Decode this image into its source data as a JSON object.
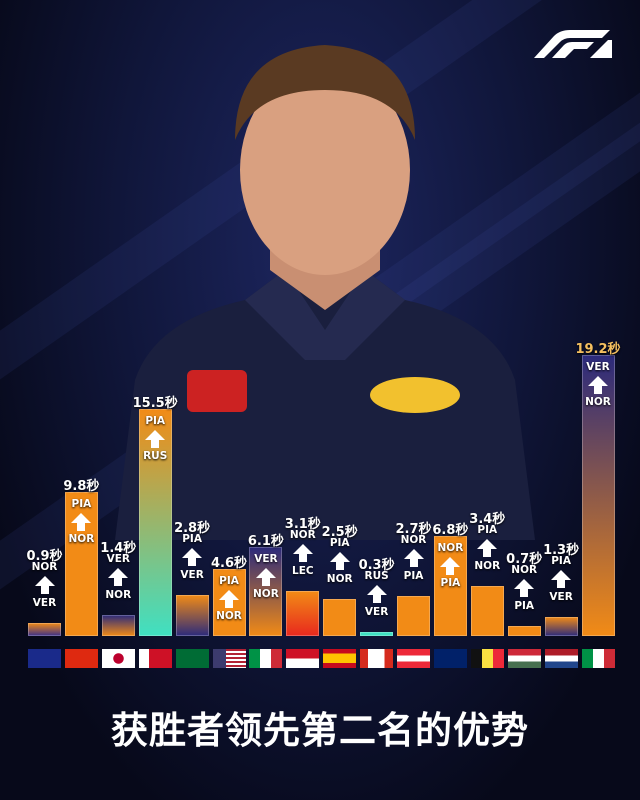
{
  "title": "获胜者领先第二名的优势",
  "logo": "F1",
  "unit": "秒",
  "colors": {
    "orange": "#f28b16",
    "navy": "#2b2a7c",
    "teal": "#3fe0c2",
    "red": "#e8281e",
    "background": "#0b0f24"
  },
  "chart_data": {
    "type": "bar",
    "title": "获胜者领先第二名的优势",
    "unit": "秒",
    "categories": [
      "australia",
      "china",
      "japan",
      "bahrain",
      "saudi-arabia",
      "usa",
      "italy",
      "monaco",
      "spain",
      "canada",
      "austria",
      "great-britain",
      "belgium",
      "hungary",
      "netherlands",
      "italy"
    ],
    "values": [
      0.9,
      9.8,
      1.4,
      15.5,
      2.8,
      4.6,
      6.1,
      3.1,
      2.5,
      0.3,
      2.7,
      6.8,
      3.4,
      0.7,
      1.3,
      19.2
    ],
    "labels": [
      "0.9秒",
      "9.8秒",
      "1.4秒",
      "15.5秒",
      "2.8秒",
      "4.6秒",
      "6.1秒",
      "3.1秒",
      "2.5秒",
      "0.3秒",
      "2.7秒",
      "6.8秒",
      "3.4秒",
      "0.7秒",
      "1.3秒",
      "19.2秒"
    ],
    "winners": [
      "NOR",
      "PIA",
      "VER",
      "PIA",
      "PIA",
      "PIA",
      "VER",
      "NOR",
      "PIA",
      "RUS",
      "NOR",
      "NOR",
      "PIA",
      "NOR",
      "PIA",
      "VER"
    ],
    "runners_up": [
      "VER",
      "NOR",
      "NOR",
      "RUS",
      "VER",
      "NOR",
      "NOR",
      "LEC",
      "NOR",
      "VER",
      "PIA",
      "PIA",
      "NOR",
      "PIA",
      "VER",
      "NOR"
    ],
    "bar_colors": [
      [
        "#f28b16",
        "#3a2f8a"
      ],
      [
        "#f28b16",
        "#f28b16"
      ],
      [
        "#2b2a7c",
        "#f28b16"
      ],
      [
        "#f28b16",
        "#3fe0c2"
      ],
      [
        "#f28b16",
        "#2b2a7c"
      ],
      [
        "#f28b16",
        "#f28b16"
      ],
      [
        "#2b2a7c",
        "#f28b16"
      ],
      [
        "#f28b16",
        "#e8281e"
      ],
      [
        "#f28b16",
        "#f28b16"
      ],
      [
        "#3fe0c2",
        "#3fe0c2"
      ],
      [
        "#f28b16",
        "#f28b16"
      ],
      [
        "#f28b16",
        "#f28b16"
      ],
      [
        "#f28b16",
        "#f28b16"
      ],
      [
        "#f28b16",
        "#f28b16"
      ],
      [
        "#f28b16",
        "#2b2a7c"
      ],
      [
        "#2b2a7c",
        "#f28b16"
      ]
    ],
    "ylim": [
      0,
      20
    ]
  }
}
